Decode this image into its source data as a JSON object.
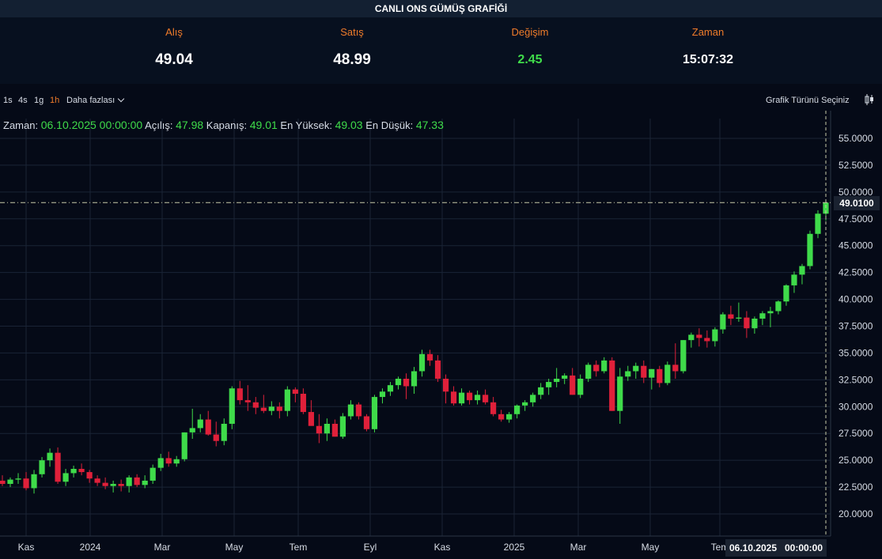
{
  "header": {
    "title": "CANLI ONS GÜMÜŞ GRAFİĞİ"
  },
  "quote": {
    "bid_label": "Alış",
    "bid_value": "49.04",
    "ask_label": "Satış",
    "ask_value": "48.99",
    "change_label": "Değişim",
    "change_value": "2.45",
    "time_label": "Zaman",
    "time_value": "15:07:32"
  },
  "toolbar": {
    "timeframes": [
      "1s",
      "4s",
      "1g",
      "1h"
    ],
    "active_timeframe": "1h",
    "more_label": "Daha fazlası",
    "chart_type_label": "Grafik Türünü Seçiniz",
    "chart_type_icon": "candlestick-icon"
  },
  "legend": {
    "time_label": "Zaman:",
    "time_value": "06.10.2025 00:00:00",
    "open_label": "Açılış:",
    "open_value": "47.98",
    "close_label": "Kapanış:",
    "close_value": "49.01",
    "high_label": "En Yüksek:",
    "high_value": "49.03",
    "low_label": "En Düşük:",
    "low_value": "47.33"
  },
  "crosshair": {
    "price_label": "49.0100",
    "date_label": "06.10.2025",
    "time_label": "00:00:00"
  },
  "colors": {
    "up": "#3fdb4a",
    "down": "#e0203a",
    "accent": "#f07c2a",
    "background": "#050a17",
    "grid": "#1a2436"
  },
  "chart_data": {
    "type": "candlestick",
    "y_ticks": [
      "55.0000",
      "52.5000",
      "50.0000",
      "47.5000",
      "45.0000",
      "42.5000",
      "40.0000",
      "37.5000",
      "35.0000",
      "32.5000",
      "30.0000",
      "27.5000",
      "25.0000",
      "22.5000",
      "20.0000"
    ],
    "ylim": [
      17.5,
      56.5
    ],
    "x_ticks": [
      "Kas",
      "2024",
      "Mar",
      "May",
      "Tem",
      "Eyl",
      "Kas",
      "2025",
      "Mar",
      "May",
      "Tem"
    ],
    "grid": true,
    "candles": [
      [
        23.1,
        23.6,
        22.6,
        22.8
      ],
      [
        22.8,
        23.4,
        22.5,
        23.2
      ],
      [
        23.2,
        23.8,
        22.8,
        23.3
      ],
      [
        23.3,
        23.9,
        22.2,
        22.4
      ],
      [
        22.4,
        24.1,
        21.9,
        23.7
      ],
      [
        23.7,
        25.3,
        23.4,
        25.0
      ],
      [
        25.0,
        26.1,
        24.4,
        25.7
      ],
      [
        25.7,
        26.2,
        22.8,
        23.0
      ],
      [
        23.0,
        24.2,
        22.6,
        23.8
      ],
      [
        23.8,
        24.5,
        23.4,
        24.2
      ],
      [
        24.2,
        24.7,
        23.6,
        23.9
      ],
      [
        23.9,
        24.1,
        22.9,
        23.3
      ],
      [
        23.3,
        23.6,
        22.6,
        22.9
      ],
      [
        22.9,
        23.4,
        22.3,
        22.6
      ],
      [
        22.6,
        23.1,
        22.0,
        22.8
      ],
      [
        22.8,
        23.2,
        22.1,
        22.6
      ],
      [
        22.6,
        23.6,
        22.0,
        23.4
      ],
      [
        23.4,
        23.7,
        22.5,
        22.7
      ],
      [
        22.7,
        23.6,
        22.4,
        23.1
      ],
      [
        23.1,
        24.6,
        22.8,
        24.3
      ],
      [
        24.3,
        25.6,
        24.0,
        25.2
      ],
      [
        25.2,
        25.8,
        24.4,
        24.7
      ],
      [
        24.7,
        25.4,
        24.4,
        25.1
      ],
      [
        25.1,
        27.6,
        24.9,
        27.6
      ],
      [
        27.6,
        29.8,
        27.0,
        28.0
      ],
      [
        28.0,
        29.3,
        27.6,
        28.8
      ],
      [
        28.8,
        29.6,
        27.3,
        27.4
      ],
      [
        27.4,
        28.6,
        26.3,
        26.8
      ],
      [
        26.8,
        28.9,
        26.4,
        28.4
      ],
      [
        28.4,
        31.9,
        27.9,
        31.7
      ],
      [
        31.7,
        32.4,
        30.2,
        30.6
      ],
      [
        30.6,
        32.0,
        29.6,
        30.4
      ],
      [
        30.4,
        30.9,
        29.3,
        29.9
      ],
      [
        29.9,
        31.1,
        29.4,
        29.6
      ],
      [
        29.6,
        30.5,
        29.2,
        30.0
      ],
      [
        30.0,
        30.4,
        28.9,
        29.6
      ],
      [
        29.6,
        31.9,
        29.1,
        31.6
      ],
      [
        31.6,
        31.8,
        30.4,
        31.2
      ],
      [
        31.2,
        31.7,
        29.3,
        29.5
      ],
      [
        29.5,
        30.6,
        28.4,
        28.2
      ],
      [
        28.2,
        29.3,
        26.6,
        27.5
      ],
      [
        27.5,
        28.9,
        26.8,
        28.4
      ],
      [
        28.4,
        28.8,
        27.2,
        27.2
      ],
      [
        27.2,
        29.4,
        27.0,
        29.1
      ],
      [
        29.1,
        30.6,
        28.8,
        30.2
      ],
      [
        30.2,
        30.4,
        28.8,
        29.1
      ],
      [
        29.1,
        29.3,
        27.7,
        27.9
      ],
      [
        27.9,
        31.1,
        27.6,
        30.9
      ],
      [
        30.9,
        31.7,
        30.3,
        31.4
      ],
      [
        31.4,
        32.3,
        31.0,
        32.0
      ],
      [
        32.0,
        32.8,
        31.6,
        32.6
      ],
      [
        32.6,
        33.1,
        30.7,
        31.9
      ],
      [
        31.9,
        33.7,
        31.2,
        33.3
      ],
      [
        33.3,
        35.3,
        32.8,
        34.9
      ],
      [
        34.9,
        35.3,
        33.8,
        34.3
      ],
      [
        34.3,
        34.8,
        32.3,
        32.6
      ],
      [
        32.6,
        33.0,
        30.3,
        31.4
      ],
      [
        31.4,
        31.9,
        30.1,
        30.3
      ],
      [
        30.3,
        31.7,
        30.1,
        31.3
      ],
      [
        31.3,
        31.5,
        30.2,
        30.6
      ],
      [
        30.6,
        31.5,
        30.2,
        31.1
      ],
      [
        31.1,
        31.6,
        30.2,
        30.4
      ],
      [
        30.4,
        30.9,
        29.1,
        29.3
      ],
      [
        29.3,
        29.7,
        28.6,
        28.8
      ],
      [
        28.8,
        29.5,
        28.5,
        29.3
      ],
      [
        29.3,
        30.2,
        28.9,
        30.1
      ],
      [
        30.1,
        30.6,
        29.6,
        30.4
      ],
      [
        30.4,
        31.3,
        30.0,
        31.1
      ],
      [
        31.1,
        32.2,
        30.7,
        31.8
      ],
      [
        31.8,
        32.6,
        31.1,
        32.3
      ],
      [
        32.3,
        33.6,
        31.8,
        32.6
      ],
      [
        32.6,
        33.1,
        32.1,
        32.9
      ],
      [
        32.9,
        33.6,
        31.1,
        31.1
      ],
      [
        31.1,
        33.0,
        30.8,
        32.6
      ],
      [
        32.6,
        34.1,
        32.3,
        33.9
      ],
      [
        33.9,
        34.3,
        32.8,
        33.3
      ],
      [
        33.3,
        34.6,
        33.1,
        34.3
      ],
      [
        34.3,
        34.6,
        29.6,
        29.6
      ],
      [
        29.6,
        33.6,
        28.4,
        32.8
      ],
      [
        32.8,
        33.8,
        32.4,
        33.3
      ],
      [
        33.3,
        34.1,
        32.6,
        33.8
      ],
      [
        33.8,
        34.3,
        32.2,
        32.7
      ],
      [
        32.7,
        33.5,
        31.6,
        33.5
      ],
      [
        33.5,
        33.8,
        31.8,
        32.2
      ],
      [
        32.2,
        34.2,
        32.0,
        33.9
      ],
      [
        33.9,
        35.9,
        32.6,
        33.3
      ],
      [
        33.3,
        36.2,
        33.1,
        36.2
      ],
      [
        36.2,
        36.9,
        35.5,
        36.7
      ],
      [
        36.7,
        37.3,
        35.6,
        36.4
      ],
      [
        36.4,
        37.1,
        35.5,
        36.1
      ],
      [
        36.1,
        37.4,
        35.6,
        37.2
      ],
      [
        37.2,
        38.8,
        36.8,
        38.6
      ],
      [
        38.6,
        39.4,
        37.6,
        38.2
      ],
      [
        38.2,
        39.7,
        37.9,
        38.3
      ],
      [
        38.3,
        38.9,
        36.4,
        37.3
      ],
      [
        37.3,
        38.4,
        36.8,
        38.2
      ],
      [
        38.2,
        38.9,
        37.6,
        38.7
      ],
      [
        38.7,
        39.3,
        37.4,
        38.9
      ],
      [
        38.9,
        39.9,
        38.6,
        39.8
      ],
      [
        39.8,
        41.4,
        39.4,
        41.3
      ],
      [
        41.3,
        42.6,
        40.6,
        42.3
      ],
      [
        42.3,
        43.3,
        41.4,
        43.1
      ],
      [
        43.1,
        46.4,
        42.8,
        46.1
      ],
      [
        46.1,
        48.3,
        45.7,
        47.98
      ],
      [
        47.98,
        49.03,
        47.33,
        49.01
      ]
    ]
  }
}
